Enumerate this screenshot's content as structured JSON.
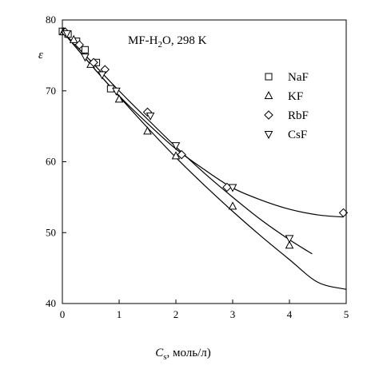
{
  "chart_data": {
    "type": "scatter",
    "title": "",
    "annotation": {
      "main": "MF-H",
      "sub": "2",
      "rest": "O, 298 K"
    },
    "xlabel": {
      "symbol": "C",
      "sub": "s",
      "rest": ", моль/л)"
    },
    "ylabel": "ε",
    "xlim": [
      0,
      5
    ],
    "ylim": [
      40,
      80
    ],
    "xticks": [
      0,
      1,
      2,
      3,
      4,
      5
    ],
    "yticks": [
      40,
      50,
      60,
      70,
      80
    ],
    "grid": false,
    "legend_position": "top-right",
    "series": [
      {
        "name": "NaF",
        "marker": "square",
        "points": [
          [
            0.0,
            78.4
          ],
          [
            0.1,
            78.0
          ],
          [
            0.25,
            77.0
          ],
          [
            0.4,
            75.8
          ],
          [
            0.6,
            74.0
          ],
          [
            0.85,
            70.3
          ]
        ]
      },
      {
        "name": "KF",
        "marker": "triangle-up",
        "points": [
          [
            0.02,
            78.3
          ],
          [
            0.2,
            77.2
          ],
          [
            0.5,
            73.7
          ],
          [
            1.0,
            68.8
          ],
          [
            1.5,
            64.3
          ],
          [
            2.0,
            60.8
          ],
          [
            3.0,
            53.7
          ],
          [
            4.0,
            48.2
          ]
        ]
      },
      {
        "name": "RbF",
        "marker": "diamond",
        "points": [
          [
            0.05,
            78.3
          ],
          [
            0.3,
            76.5
          ],
          [
            0.55,
            74.0
          ],
          [
            0.75,
            73.0
          ],
          [
            1.5,
            67.0
          ],
          [
            2.1,
            61.0
          ],
          [
            2.9,
            56.4
          ],
          [
            4.95,
            52.8
          ]
        ]
      },
      {
        "name": "CsF",
        "marker": "triangle-down",
        "points": [
          [
            0.08,
            78.1
          ],
          [
            0.4,
            74.8
          ],
          [
            0.7,
            72.3
          ],
          [
            0.95,
            70.0
          ],
          [
            1.55,
            66.5
          ],
          [
            2.0,
            62.3
          ],
          [
            3.0,
            56.4
          ],
          [
            4.0,
            49.2
          ]
        ]
      }
    ],
    "fit_curves": [
      {
        "x": [
          0,
          0.5,
          1,
          1.5,
          2,
          2.5,
          3,
          3.5,
          4,
          4.5,
          4.95
        ],
        "y": [
          78.4,
          73.7,
          69.3,
          65.4,
          61.8,
          58.9,
          56.3,
          54.6,
          53.3,
          52.5,
          52.2
        ]
      },
      {
        "x": [
          0,
          0.5,
          1,
          1.5,
          2,
          2.5,
          3,
          3.5,
          4,
          4.4
        ],
        "y": [
          78.4,
          74.2,
          70.0,
          66.0,
          62.1,
          58.4,
          55.0,
          51.8,
          49.0,
          47.0
        ]
      },
      {
        "x": [
          0,
          0.5,
          1,
          1.5,
          2,
          2.5,
          3,
          3.5,
          4,
          4.5,
          5
        ],
        "y": [
          78.4,
          73.7,
          69.2,
          64.8,
          60.6,
          56.7,
          53.0,
          49.5,
          46.2,
          43.0,
          42.0
        ]
      }
    ]
  }
}
